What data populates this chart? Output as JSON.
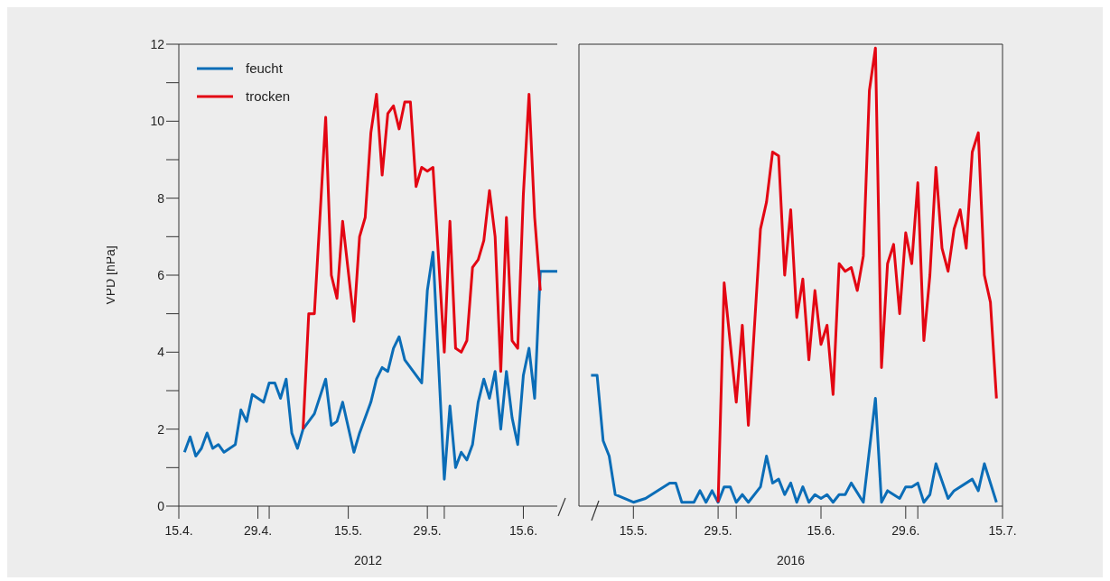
{
  "chart_data": [
    {
      "type": "line",
      "ylabel": "VPD [hPa]",
      "xlabel": "2012",
      "legend": "top left",
      "line_style": "solid",
      "grid": false,
      "xlim": [
        "--04-15",
        "--06-21"
      ],
      "xticks": [
        {
          "value": "--04-15",
          "label": "15.4."
        },
        {
          "value": "--04-29",
          "label": "29.4."
        },
        {
          "value": "--05-01",
          "label": null
        },
        {
          "value": "--05-15",
          "label": "15.5."
        },
        {
          "value": "--05-29",
          "label": "29.5."
        },
        {
          "value": "--06-01",
          "label": null
        },
        {
          "value": "--06-15",
          "label": "15.6."
        }
      ],
      "ylim": [
        0,
        12
      ],
      "yticks": [
        0,
        {
          "value": 1,
          "label": null
        },
        2,
        {
          "value": 3,
          "label": null
        },
        4,
        {
          "value": 5,
          "label": null
        },
        6,
        {
          "value": 7,
          "label": null
        },
        8,
        {
          "value": 9,
          "label": null
        },
        10,
        {
          "value": 11,
          "label": null
        },
        12
      ],
      "series": [
        {
          "name": "feucht",
          "color": "#0b6db7",
          "x": [
            "--04-16",
            "--04-17",
            "--04-18",
            "--04-19",
            "--04-20",
            "--04-21",
            "--04-22",
            "--04-23",
            "--04-25",
            "--04-26",
            "--04-27",
            "--04-28",
            "--04-30",
            "--05-01",
            "--05-02",
            "--05-03",
            "--05-04",
            "--05-05",
            "--05-06",
            "--05-07",
            "--05-09",
            "--05-11",
            "--05-12",
            "--05-13",
            "--05-14",
            "--05-16",
            "--05-17",
            "--05-19",
            "--05-20",
            "--05-21",
            "--05-22",
            "--05-23",
            "--05-24",
            "--05-25",
            "--05-27",
            "--05-28",
            "--05-29",
            "--05-30",
            "--06-01",
            "--06-02",
            "--06-03",
            "--06-04",
            "--06-05",
            "--06-06",
            "--06-07",
            "--06-08",
            "--06-09",
            "--06-10",
            "--06-11",
            "--06-12",
            "--06-13",
            "--06-14",
            "--06-15",
            "--06-16",
            "--06-17",
            "--06-18",
            "--06-21"
          ],
          "values": [
            1.4,
            1.8,
            1.3,
            1.5,
            1.9,
            1.5,
            1.6,
            1.4,
            1.6,
            2.5,
            2.2,
            2.9,
            2.7,
            3.2,
            3.2,
            2.8,
            3.3,
            1.9,
            1.5,
            2.0,
            2.4,
            3.3,
            2.1,
            2.2,
            2.7,
            1.4,
            1.9,
            2.7,
            3.3,
            3.6,
            3.5,
            4.1,
            4.4,
            3.8,
            3.4,
            3.2,
            5.6,
            6.6,
            0.7,
            2.6,
            1.0,
            1.4,
            1.2,
            1.6,
            2.7,
            3.3,
            2.8,
            3.5,
            2.0,
            3.5,
            2.3,
            1.6,
            3.4,
            4.1,
            2.8,
            6.1,
            6.1
          ]
        },
        {
          "name": "trocken",
          "color": "#e30613",
          "x": [
            "--05-07",
            "--05-08",
            "--05-09",
            "--05-11",
            "--05-12",
            "--05-13",
            "--05-14",
            "--05-16",
            "--05-17",
            "--05-18",
            "--05-19",
            "--05-20",
            "--05-21",
            "--05-22",
            "--05-23",
            "--05-24",
            "--05-25",
            "--05-26",
            "--05-27",
            "--05-28",
            "--05-29",
            "--05-30",
            "--06-01",
            "--06-02",
            "--06-03",
            "--06-04",
            "--06-05",
            "--06-06",
            "--06-07",
            "--06-08",
            "--06-09",
            "--06-10",
            "--06-11",
            "--06-12",
            "--06-13",
            "--06-14",
            "--06-15",
            "--06-16",
            "--06-17",
            "--06-18"
          ],
          "values": [
            2.0,
            5.0,
            5.0,
            10.1,
            6.0,
            5.4,
            7.4,
            4.8,
            7.0,
            7.5,
            9.7,
            10.7,
            8.6,
            10.2,
            10.4,
            9.8,
            10.5,
            10.5,
            8.3,
            8.8,
            8.7,
            8.8,
            4.0,
            7.4,
            4.1,
            4.0,
            4.3,
            6.2,
            6.4,
            6.9,
            8.2,
            7.0,
            3.5,
            7.5,
            4.3,
            4.1,
            8.1,
            10.7,
            7.5,
            5.6
          ]
        }
      ]
    },
    {
      "type": "line",
      "xlabel": "2016",
      "tick_labels": "x",
      "line_style": "solid",
      "grid": false,
      "xlim": [
        "--05-06",
        "--07-15"
      ],
      "xticks": [
        {
          "value": "--05-15",
          "label": "15.5."
        },
        {
          "value": "--05-29",
          "label": "29.5."
        },
        {
          "value": "--06-01",
          "label": null
        },
        {
          "value": "--06-15",
          "label": "15.6."
        },
        {
          "value": "--06-29",
          "label": "29.6."
        },
        {
          "value": "--07-01",
          "label": null
        },
        {
          "value": "--07-15",
          "label": "15.7."
        }
      ],
      "ylim": [
        0,
        12
      ],
      "series": [
        {
          "color": "#0b6db7",
          "x": [
            "--05-08",
            "--05-09",
            "--05-10",
            "--05-11",
            "--05-12",
            "--05-15",
            "--05-17",
            "--05-21",
            "--05-22",
            "--05-23",
            "--05-25",
            "--05-26",
            "--05-27",
            "--05-28",
            "--05-29",
            "--05-30",
            "--05-31",
            "--06-01",
            "--06-02",
            "--06-03",
            "--06-05",
            "--06-06",
            "--06-07",
            "--06-08",
            "--06-09",
            "--06-10",
            "--06-11",
            "--06-12",
            "--06-13",
            "--06-14",
            "--06-15",
            "--06-16",
            "--06-17",
            "--06-18",
            "--06-19",
            "--06-20",
            "--06-22",
            "--06-24",
            "--06-25",
            "--06-26",
            "--06-27",
            "--06-28",
            "--06-29",
            "--06-30",
            "--07-01",
            "--07-02",
            "--07-03",
            "--07-04",
            "--07-06",
            "--07-07",
            "--07-10",
            "--07-11",
            "--07-12",
            "--07-14"
          ],
          "values": [
            3.4,
            3.4,
            1.7,
            1.3,
            0.3,
            0.1,
            0.2,
            0.6,
            0.6,
            0.1,
            0.1,
            0.4,
            0.1,
            0.4,
            0.1,
            0.5,
            0.5,
            0.1,
            0.3,
            0.1,
            0.5,
            1.3,
            0.6,
            0.7,
            0.3,
            0.6,
            0.1,
            0.5,
            0.1,
            0.3,
            0.2,
            0.3,
            0.1,
            0.3,
            0.3,
            0.6,
            0.1,
            2.8,
            0.1,
            0.4,
            0.3,
            0.2,
            0.5,
            0.5,
            0.6,
            0.1,
            0.3,
            1.1,
            0.2,
            0.4,
            0.7,
            0.4,
            1.1,
            0.1
          ]
        },
        {
          "color": "#e30613",
          "x": [
            "--05-29",
            "--05-30",
            "--06-01",
            "--06-02",
            "--06-03",
            "--06-05",
            "--06-06",
            "--06-07",
            "--06-08",
            "--06-09",
            "--06-10",
            "--06-11",
            "--06-12",
            "--06-13",
            "--06-14",
            "--06-15",
            "--06-16",
            "--06-17",
            "--06-18",
            "--06-19",
            "--06-20",
            "--06-21",
            "--06-22",
            "--06-23",
            "--06-24",
            "--06-25",
            "--06-26",
            "--06-27",
            "--06-28",
            "--06-29",
            "--06-30",
            "--07-01",
            "--07-02",
            "--07-03",
            "--07-04",
            "--07-05",
            "--07-06",
            "--07-07",
            "--07-08",
            "--07-09",
            "--07-10",
            "--07-11",
            "--07-12",
            "--07-13",
            "--07-14"
          ],
          "values": [
            0.1,
            5.8,
            2.7,
            4.7,
            2.1,
            7.2,
            7.9,
            9.2,
            9.1,
            6.0,
            7.7,
            4.9,
            5.9,
            3.8,
            5.6,
            4.2,
            4.7,
            2.9,
            6.3,
            6.1,
            6.2,
            5.6,
            6.5,
            10.8,
            11.9,
            3.6,
            6.3,
            6.8,
            5.0,
            7.1,
            6.3,
            8.4,
            4.3,
            6.0,
            8.8,
            6.7,
            6.1,
            7.2,
            7.7,
            6.7,
            9.2,
            9.7,
            6.0,
            5.3,
            2.8
          ]
        }
      ]
    }
  ]
}
